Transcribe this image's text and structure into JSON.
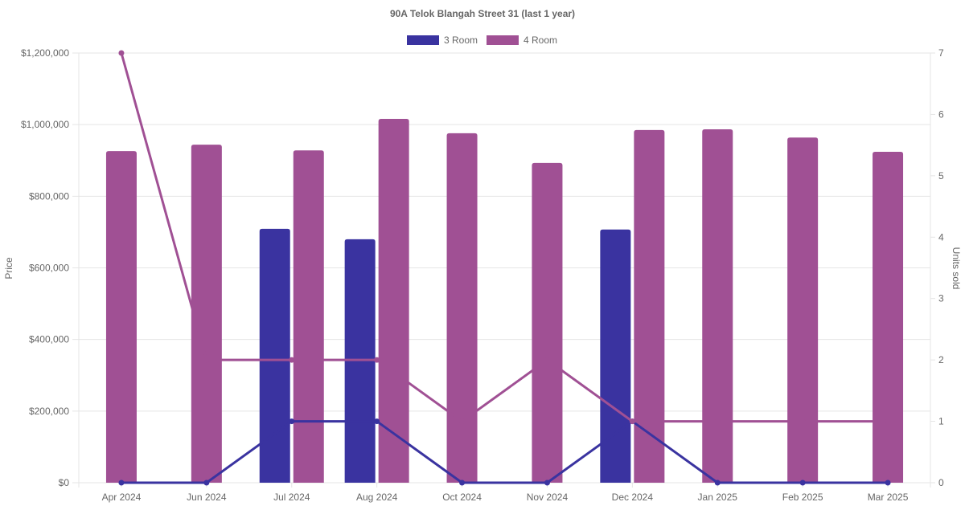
{
  "chart_data": {
    "type": "bar",
    "title": "90A Telok Blangah Street 31 (last 1 year)",
    "categories": [
      "Apr 2024",
      "Jun 2024",
      "Jul 2024",
      "Aug 2024",
      "Oct 2024",
      "Nov 2024",
      "Dec 2024",
      "Jan 2025",
      "Feb 2025",
      "Mar 2025"
    ],
    "ylabel": "Price",
    "y2label": "Units sold",
    "ylim": [
      0,
      1200000
    ],
    "y2lim": [
      0,
      7
    ],
    "yticks": [
      "$0",
      "$200,000",
      "$400,000",
      "$600,000",
      "$800,000",
      "$1,000,000",
      "$1,200,000"
    ],
    "y2ticks": [
      "0",
      "1",
      "2",
      "3",
      "4",
      "5",
      "6",
      "7"
    ],
    "grid": true,
    "legend_position": "top",
    "series": [
      {
        "name": "3 Room",
        "color": "#3a33a0",
        "price": [
          null,
          null,
          709000,
          680000,
          null,
          null,
          707000,
          null,
          null,
          null
        ],
        "units": [
          0,
          0,
          1,
          1,
          0,
          0,
          1,
          0,
          0,
          0
        ]
      },
      {
        "name": "4 Room",
        "color": "#a05094",
        "price": [
          926000,
          944000,
          928000,
          1016000,
          976000,
          893000,
          985000,
          987000,
          964000,
          924000
        ],
        "units": [
          7,
          2,
          2,
          2,
          1,
          2,
          1,
          1,
          1,
          1
        ]
      }
    ]
  }
}
